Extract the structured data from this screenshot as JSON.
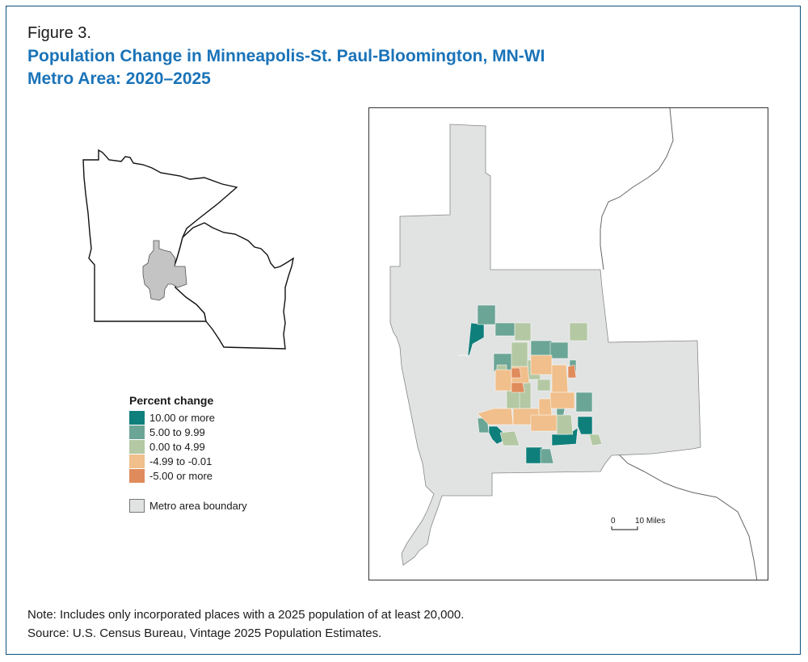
{
  "figure_label": "Figure 3.",
  "title_line1": "Population Change in Minneapolis-St. Paul-Bloomington, MN-WI",
  "title_line2": "Metro Area: 2020–2025",
  "legend": {
    "title": "Percent change",
    "items": [
      {
        "label": "10.00 or more",
        "color": "#0f7f7b"
      },
      {
        "label": "5.00 to 9.99",
        "color": "#6ba595"
      },
      {
        "label": "0.00 to 4.99",
        "color": "#b4c8a4"
      },
      {
        "label": "-4.99 to -0.01",
        "color": "#f0bf8b"
      },
      {
        "label": "-5.00 or more",
        "color": "#df8b5b"
      }
    ],
    "boundary_label": "Metro area boundary",
    "boundary_color": "#e1e2e2"
  },
  "scale_bar": {
    "start": "0",
    "end": "10 Miles"
  },
  "note": "Note: Includes only incorporated places with a 2025 population of at least 20,000.",
  "source": "Source: U.S. Census Bureau, Vintage 2025 Population Estimates."
}
